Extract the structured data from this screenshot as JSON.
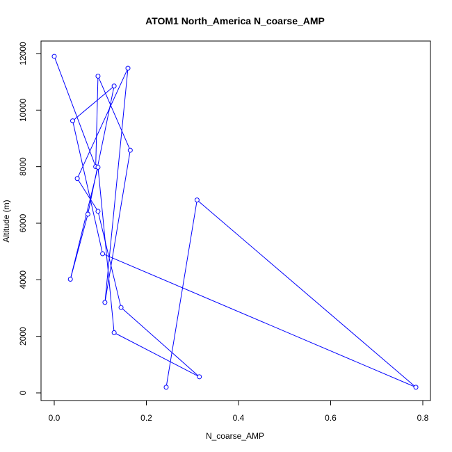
{
  "chart_data": {
    "type": "line",
    "title": "ATOM1 North_America N_coarse_AMP",
    "xlabel": "N_coarse_AMP",
    "ylabel": "Altitude (m)",
    "xlim": [
      0,
      0.8
    ],
    "ylim": [
      0,
      12000
    ],
    "xticks": [
      "0.0",
      "0.2",
      "0.4",
      "0.6",
      "0.8"
    ],
    "yticks": [
      "0",
      "2000",
      "4000",
      "6000",
      "8000",
      "10000",
      "12000"
    ],
    "grid": false,
    "legend": "none",
    "color": "#0000ff",
    "points": [
      {
        "x": 0.0,
        "y": 11900
      },
      {
        "x": 0.09,
        "y": 8000
      },
      {
        "x": 0.095,
        "y": 11200
      },
      {
        "x": 0.165,
        "y": 8580
      },
      {
        "x": 0.11,
        "y": 3200
      },
      {
        "x": 0.16,
        "y": 11480
      },
      {
        "x": 0.05,
        "y": 7580
      },
      {
        "x": 0.095,
        "y": 6420
      },
      {
        "x": 0.145,
        "y": 3020
      },
      {
        "x": 0.315,
        "y": 570
      },
      {
        "x": 0.13,
        "y": 2130
      },
      {
        "x": 0.095,
        "y": 7980
      },
      {
        "x": 0.035,
        "y": 4020
      },
      {
        "x": 0.073,
        "y": 6320
      },
      {
        "x": 0.13,
        "y": 10850
      },
      {
        "x": 0.04,
        "y": 9620
      }
    ],
    "points_extra": [
      {
        "x": 0.105,
        "y": 4920
      },
      {
        "x": 0.785,
        "y": 200
      },
      {
        "x": 0.31,
        "y": 6820
      },
      {
        "x": 0.243,
        "y": 200
      }
    ]
  }
}
